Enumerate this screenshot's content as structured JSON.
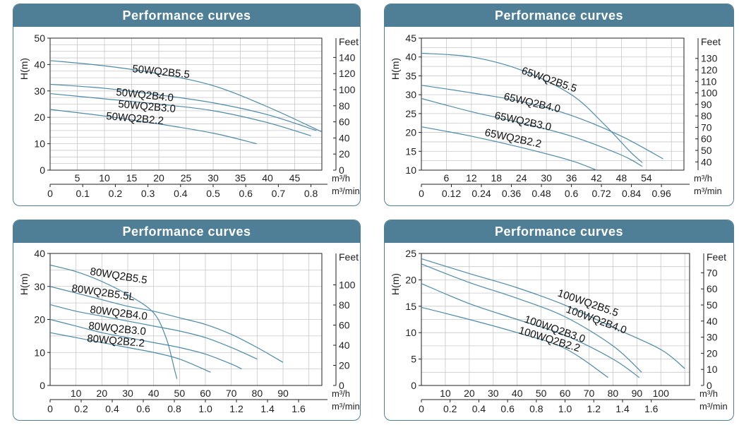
{
  "colors": {
    "header": "#4f7f96",
    "curve": "#4d8aa8",
    "grid": "#c8c8c8",
    "axis": "#222222"
  },
  "chart_data": [
    {
      "type": "line",
      "header": "Performance curves",
      "ylabel": "H(m)",
      "y2label": "Feet",
      "ylim": [
        0,
        50
      ],
      "yticks": [
        "0",
        "10",
        "20",
        "30",
        "40",
        "50"
      ],
      "y2ticks": [
        "0",
        "20",
        "40",
        "60",
        "80",
        "100",
        "120",
        "140"
      ],
      "x1unit": "m³/h",
      "x1ticks": [
        "5",
        "10",
        "15",
        "20",
        "25",
        "30",
        "35",
        "40",
        "45"
      ],
      "x2unit": "m³/min",
      "x2ticks": [
        "0",
        "0.1",
        "0.2",
        "0.3",
        "0.4",
        "0.5",
        "0.6",
        "0.7",
        "0.8"
      ],
      "series": [
        {
          "name": "50WQ2B5.5",
          "x": [
            0,
            10,
            20,
            30,
            40,
            50
          ],
          "y": [
            41.5,
            39.5,
            36.5,
            32,
            24,
            14.5
          ]
        },
        {
          "name": "50WQ2B4.0",
          "x": [
            0,
            10,
            20,
            30,
            40,
            49
          ],
          "y": [
            32.5,
            31,
            28.5,
            25.5,
            21,
            15
          ]
        },
        {
          "name": "50WQ2B3.0",
          "x": [
            0,
            10,
            20,
            30,
            40,
            48
          ],
          "y": [
            29,
            27,
            25,
            22.5,
            18,
            13
          ]
        },
        {
          "name": "50WQ2B2.2",
          "x": [
            0,
            10,
            20,
            30,
            38
          ],
          "y": [
            23,
            20.5,
            17.5,
            14,
            10
          ]
        }
      ]
    },
    {
      "type": "line",
      "header": "Performance curves",
      "ylabel": "H(m)",
      "y2label": "Feet",
      "ylim": [
        10,
        45
      ],
      "yticks": [
        "10",
        "15",
        "20",
        "25",
        "30",
        "35",
        "40",
        "45"
      ],
      "y2ticks": [
        "40",
        "50",
        "60",
        "70",
        "80",
        "90",
        "100",
        "110",
        "120",
        "130"
      ],
      "x1unit": "m³/h",
      "x1ticks": [
        "6",
        "12",
        "18",
        "24",
        "30",
        "36",
        "42",
        "48",
        "54"
      ],
      "x2unit": "m³/min",
      "x2ticks": [
        "0",
        "0.12",
        "0.24",
        "0.36",
        "0.48",
        "0.6",
        "0.72",
        "0.84",
        "0.96"
      ],
      "series": [
        {
          "name": "65WQ2B5.5",
          "x": [
            0,
            12,
            24,
            36,
            44,
            50,
            53
          ],
          "y": [
            41,
            40,
            36.5,
            30,
            22,
            15,
            12
          ]
        },
        {
          "name": "65WQ2B4.0",
          "x": [
            0,
            12,
            24,
            36,
            48,
            58
          ],
          "y": [
            32.5,
            30.5,
            28.2,
            24.5,
            19,
            13
          ]
        },
        {
          "name": "65WQ2B3.0",
          "x": [
            0,
            12,
            24,
            36,
            48,
            53
          ],
          "y": [
            29,
            25.5,
            22.5,
            19,
            14,
            11
          ]
        },
        {
          "name": "65WQ2B2.2",
          "x": [
            0,
            12,
            24,
            36,
            42
          ],
          "y": [
            21.5,
            19,
            16,
            12.5,
            10
          ]
        }
      ]
    },
    {
      "type": "line",
      "header": "Performance curves",
      "ylabel": "H(m)",
      "y2label": "Feet",
      "ylim": [
        0,
        40
      ],
      "yticks": [
        "0",
        "10",
        "20",
        "30",
        "40"
      ],
      "y2ticks": [
        "0",
        "20",
        "40",
        "60",
        "80",
        "100"
      ],
      "x1unit": "m³/h",
      "x1ticks": [
        "10",
        "20",
        "30",
        "40",
        "50",
        "60",
        "70",
        "80",
        "90"
      ],
      "x2unit": "m³/min",
      "x2ticks": [
        "0",
        "0.2",
        "0.4",
        "0.6",
        "0.8",
        "1.0",
        "1.2",
        "1.4",
        "1.6"
      ],
      "series": [
        {
          "name": "80WQ2B5.5",
          "x": [
            0,
            10,
            20,
            30,
            40,
            45,
            48,
            49
          ],
          "y": [
            36.5,
            34.5,
            31.5,
            27.5,
            22,
            14,
            5,
            2
          ]
        },
        {
          "name": "80WQ2B5.5L",
          "x": [
            0,
            10,
            20,
            30,
            40,
            50,
            60,
            70,
            80,
            90
          ],
          "y": [
            30,
            28,
            26,
            24,
            22.5,
            20.5,
            18.5,
            15.5,
            11.5,
            7
          ]
        },
        {
          "name": "80WQ2B4.0",
          "x": [
            0,
            10,
            20,
            30,
            40,
            50,
            60,
            70,
            80
          ],
          "y": [
            24.5,
            22.5,
            21,
            19.5,
            18,
            16.5,
            14.5,
            11.5,
            8
          ]
        },
        {
          "name": "80WQ2B3.0",
          "x": [
            0,
            10,
            20,
            30,
            40,
            50,
            60,
            70,
            74
          ],
          "y": [
            20,
            18,
            16,
            14.5,
            13,
            11.5,
            9.5,
            6.5,
            5
          ]
        },
        {
          "name": "80WQ2B2.2",
          "x": [
            0,
            10,
            20,
            30,
            40,
            50,
            62
          ],
          "y": [
            16,
            14.5,
            13,
            11.5,
            10,
            8,
            4
          ]
        }
      ]
    },
    {
      "type": "line",
      "header": "Performance curves",
      "ylabel": "H(m)",
      "y2label": "Feet",
      "ylim": [
        0,
        25
      ],
      "yticks": [
        "0",
        "5",
        "10",
        "15",
        "20",
        "25"
      ],
      "y2ticks": [
        "0",
        "10",
        "20",
        "30",
        "40",
        "50",
        "60",
        "70"
      ],
      "x1unit": "m³/h",
      "x1ticks": [
        "10",
        "20",
        "30",
        "40",
        "50",
        "60",
        "70",
        "80",
        "90",
        "100"
      ],
      "x2unit": "m³/min",
      "x2ticks": [
        "0",
        "0.2",
        "0.4",
        "0.6",
        "0.8",
        "1.0",
        "1.2",
        "1.4",
        "1.6"
      ],
      "series": [
        {
          "name": "100WQ2B5.5",
          "x": [
            0,
            20,
            40,
            60,
            80,
            100,
            110
          ],
          "y": [
            24,
            21.2,
            18.5,
            15.2,
            11,
            6.8,
            3.2
          ]
        },
        {
          "name": "100WQ2B4.0",
          "x": [
            0,
            20,
            40,
            60,
            80,
            92
          ],
          "y": [
            23,
            19.5,
            16.5,
            13,
            7.5,
            2.5
          ]
        },
        {
          "name": "100WQ2B3.0",
          "x": [
            0,
            20,
            40,
            60,
            80,
            91
          ],
          "y": [
            19.3,
            15.5,
            12.5,
            9.5,
            5,
            1.5
          ]
        },
        {
          "name": "100WQ2B2.2",
          "x": [
            0,
            20,
            40,
            60,
            78
          ],
          "y": [
            14.8,
            12.5,
            10,
            7,
            1.5
          ]
        }
      ]
    }
  ]
}
